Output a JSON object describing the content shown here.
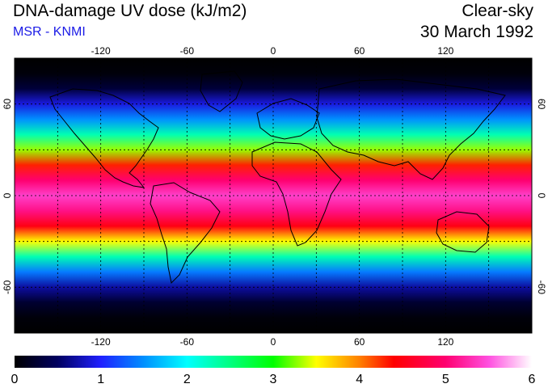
{
  "header": {
    "title": "DNA-damage UV dose (kJ/m2)",
    "source": "MSR - KNMI",
    "condition": "Clear-sky",
    "date": "30 March 1992"
  },
  "map": {
    "projection": "equirectangular",
    "lon_range": [
      -180,
      180
    ],
    "lat_range": [
      -90,
      90
    ],
    "lon_ticks": [
      -120,
      -60,
      0,
      60,
      120
    ],
    "lat_ticks": [
      60,
      0,
      -60
    ],
    "lon_tick_labels": [
      "-120",
      "-60",
      "0",
      "60",
      "120"
    ],
    "lat_tick_labels": [
      "60",
      "0",
      "-60"
    ],
    "grid": "dotted every 30 degrees",
    "coastlines": true,
    "background_color": "#000000"
  },
  "colorbar": {
    "min": 0,
    "max": 6,
    "tick_values": [
      0,
      1,
      2,
      3,
      4,
      5,
      6
    ],
    "tick_labels": [
      "0",
      "1",
      "2",
      "3",
      "4",
      "5",
      "6"
    ],
    "color_stops": [
      {
        "value": 0.0,
        "color": "#000000"
      },
      {
        "value": 0.5,
        "color": "#000060"
      },
      {
        "value": 1.0,
        "color": "#2020ff"
      },
      {
        "value": 1.5,
        "color": "#0090ff"
      },
      {
        "value": 2.0,
        "color": "#00ffff"
      },
      {
        "value": 2.5,
        "color": "#00ff80"
      },
      {
        "value": 3.0,
        "color": "#00ff00"
      },
      {
        "value": 3.5,
        "color": "#ffff00"
      },
      {
        "value": 4.0,
        "color": "#ff8000"
      },
      {
        "value": 4.4,
        "color": "#ff0000"
      },
      {
        "value": 5.0,
        "color": "#ff0070"
      },
      {
        "value": 5.5,
        "color": "#ff50e0"
      },
      {
        "value": 6.0,
        "color": "#ffffff"
      }
    ]
  },
  "dose_profile": {
    "latitude": [
      90,
      80,
      70,
      60,
      50,
      40,
      30,
      20,
      10,
      0,
      -10,
      -20,
      -30,
      -40,
      -50,
      -60,
      -70,
      -80,
      -90
    ],
    "dose": [
      0.0,
      0.05,
      0.3,
      0.9,
      1.5,
      2.3,
      3.3,
      4.3,
      5.0,
      5.4,
      5.1,
      4.5,
      3.5,
      2.3,
      1.4,
      0.7,
      0.25,
      0.05,
      0.0
    ]
  }
}
